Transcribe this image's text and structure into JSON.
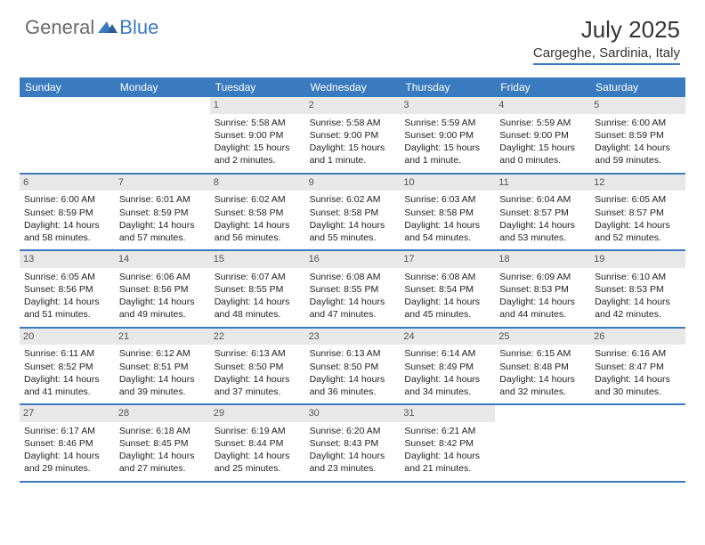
{
  "header": {
    "logo_general": "General",
    "logo_blue": "Blue",
    "month_title": "July 2025",
    "location": "Cargeghe, Sardinia, Italy"
  },
  "colors": {
    "accent": "#3a7bbf",
    "day_num_bg": "#e8e8e8",
    "text": "#222",
    "logo_grey": "#6b6b6b"
  },
  "day_names": [
    "Sunday",
    "Monday",
    "Tuesday",
    "Wednesday",
    "Thursday",
    "Friday",
    "Saturday"
  ],
  "weeks": [
    [
      {
        "empty": true
      },
      {
        "empty": true
      },
      {
        "num": "1",
        "sunrise": "Sunrise: 5:58 AM",
        "sunset": "Sunset: 9:00 PM",
        "daylight": "Daylight: 15 hours and 2 minutes."
      },
      {
        "num": "2",
        "sunrise": "Sunrise: 5:58 AM",
        "sunset": "Sunset: 9:00 PM",
        "daylight": "Daylight: 15 hours and 1 minute."
      },
      {
        "num": "3",
        "sunrise": "Sunrise: 5:59 AM",
        "sunset": "Sunset: 9:00 PM",
        "daylight": "Daylight: 15 hours and 1 minute."
      },
      {
        "num": "4",
        "sunrise": "Sunrise: 5:59 AM",
        "sunset": "Sunset: 9:00 PM",
        "daylight": "Daylight: 15 hours and 0 minutes."
      },
      {
        "num": "5",
        "sunrise": "Sunrise: 6:00 AM",
        "sunset": "Sunset: 8:59 PM",
        "daylight": "Daylight: 14 hours and 59 minutes."
      }
    ],
    [
      {
        "num": "6",
        "sunrise": "Sunrise: 6:00 AM",
        "sunset": "Sunset: 8:59 PM",
        "daylight": "Daylight: 14 hours and 58 minutes."
      },
      {
        "num": "7",
        "sunrise": "Sunrise: 6:01 AM",
        "sunset": "Sunset: 8:59 PM",
        "daylight": "Daylight: 14 hours and 57 minutes."
      },
      {
        "num": "8",
        "sunrise": "Sunrise: 6:02 AM",
        "sunset": "Sunset: 8:58 PM",
        "daylight": "Daylight: 14 hours and 56 minutes."
      },
      {
        "num": "9",
        "sunrise": "Sunrise: 6:02 AM",
        "sunset": "Sunset: 8:58 PM",
        "daylight": "Daylight: 14 hours and 55 minutes."
      },
      {
        "num": "10",
        "sunrise": "Sunrise: 6:03 AM",
        "sunset": "Sunset: 8:58 PM",
        "daylight": "Daylight: 14 hours and 54 minutes."
      },
      {
        "num": "11",
        "sunrise": "Sunrise: 6:04 AM",
        "sunset": "Sunset: 8:57 PM",
        "daylight": "Daylight: 14 hours and 53 minutes."
      },
      {
        "num": "12",
        "sunrise": "Sunrise: 6:05 AM",
        "sunset": "Sunset: 8:57 PM",
        "daylight": "Daylight: 14 hours and 52 minutes."
      }
    ],
    [
      {
        "num": "13",
        "sunrise": "Sunrise: 6:05 AM",
        "sunset": "Sunset: 8:56 PM",
        "daylight": "Daylight: 14 hours and 51 minutes."
      },
      {
        "num": "14",
        "sunrise": "Sunrise: 6:06 AM",
        "sunset": "Sunset: 8:56 PM",
        "daylight": "Daylight: 14 hours and 49 minutes."
      },
      {
        "num": "15",
        "sunrise": "Sunrise: 6:07 AM",
        "sunset": "Sunset: 8:55 PM",
        "daylight": "Daylight: 14 hours and 48 minutes."
      },
      {
        "num": "16",
        "sunrise": "Sunrise: 6:08 AM",
        "sunset": "Sunset: 8:55 PM",
        "daylight": "Daylight: 14 hours and 47 minutes."
      },
      {
        "num": "17",
        "sunrise": "Sunrise: 6:08 AM",
        "sunset": "Sunset: 8:54 PM",
        "daylight": "Daylight: 14 hours and 45 minutes."
      },
      {
        "num": "18",
        "sunrise": "Sunrise: 6:09 AM",
        "sunset": "Sunset: 8:53 PM",
        "daylight": "Daylight: 14 hours and 44 minutes."
      },
      {
        "num": "19",
        "sunrise": "Sunrise: 6:10 AM",
        "sunset": "Sunset: 8:53 PM",
        "daylight": "Daylight: 14 hours and 42 minutes."
      }
    ],
    [
      {
        "num": "20",
        "sunrise": "Sunrise: 6:11 AM",
        "sunset": "Sunset: 8:52 PM",
        "daylight": "Daylight: 14 hours and 41 minutes."
      },
      {
        "num": "21",
        "sunrise": "Sunrise: 6:12 AM",
        "sunset": "Sunset: 8:51 PM",
        "daylight": "Daylight: 14 hours and 39 minutes."
      },
      {
        "num": "22",
        "sunrise": "Sunrise: 6:13 AM",
        "sunset": "Sunset: 8:50 PM",
        "daylight": "Daylight: 14 hours and 37 minutes."
      },
      {
        "num": "23",
        "sunrise": "Sunrise: 6:13 AM",
        "sunset": "Sunset: 8:50 PM",
        "daylight": "Daylight: 14 hours and 36 minutes."
      },
      {
        "num": "24",
        "sunrise": "Sunrise: 6:14 AM",
        "sunset": "Sunset: 8:49 PM",
        "daylight": "Daylight: 14 hours and 34 minutes."
      },
      {
        "num": "25",
        "sunrise": "Sunrise: 6:15 AM",
        "sunset": "Sunset: 8:48 PM",
        "daylight": "Daylight: 14 hours and 32 minutes."
      },
      {
        "num": "26",
        "sunrise": "Sunrise: 6:16 AM",
        "sunset": "Sunset: 8:47 PM",
        "daylight": "Daylight: 14 hours and 30 minutes."
      }
    ],
    [
      {
        "num": "27",
        "sunrise": "Sunrise: 6:17 AM",
        "sunset": "Sunset: 8:46 PM",
        "daylight": "Daylight: 14 hours and 29 minutes."
      },
      {
        "num": "28",
        "sunrise": "Sunrise: 6:18 AM",
        "sunset": "Sunset: 8:45 PM",
        "daylight": "Daylight: 14 hours and 27 minutes."
      },
      {
        "num": "29",
        "sunrise": "Sunrise: 6:19 AM",
        "sunset": "Sunset: 8:44 PM",
        "daylight": "Daylight: 14 hours and 25 minutes."
      },
      {
        "num": "30",
        "sunrise": "Sunrise: 6:20 AM",
        "sunset": "Sunset: 8:43 PM",
        "daylight": "Daylight: 14 hours and 23 minutes."
      },
      {
        "num": "31",
        "sunrise": "Sunrise: 6:21 AM",
        "sunset": "Sunset: 8:42 PM",
        "daylight": "Daylight: 14 hours and 21 minutes."
      },
      {
        "empty": true
      },
      {
        "empty": true
      }
    ]
  ]
}
